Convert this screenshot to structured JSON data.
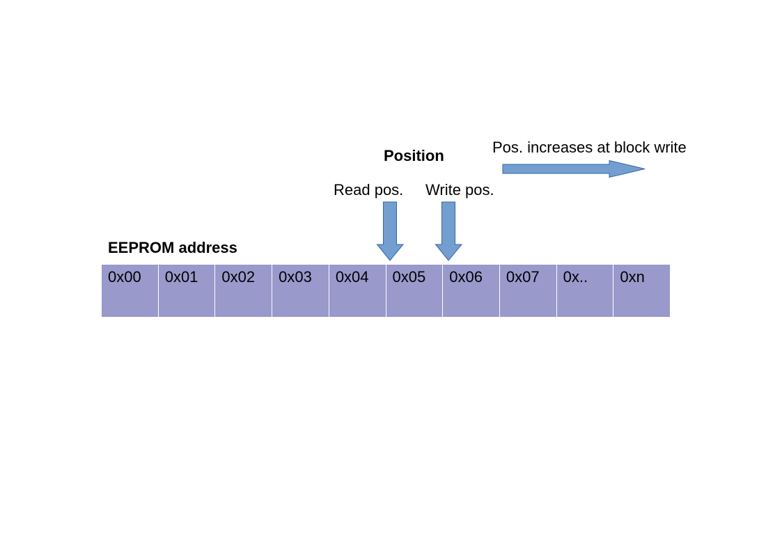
{
  "diagram": {
    "position_title": "Position",
    "increase_label": "Pos. increases at block write",
    "read_label": "Read pos.",
    "write_label": "Write pos.",
    "eeprom_label": "EEPROM address",
    "arrow_fill": "#729fcf",
    "arrow_stroke": "#3465a4",
    "cell_fill": "#9999cc",
    "cells": [
      "0x00",
      "0x01",
      "0x02",
      "0x03",
      "0x04",
      "0x05",
      "0x06",
      "0x07",
      "0x..",
      "0xn"
    ]
  }
}
